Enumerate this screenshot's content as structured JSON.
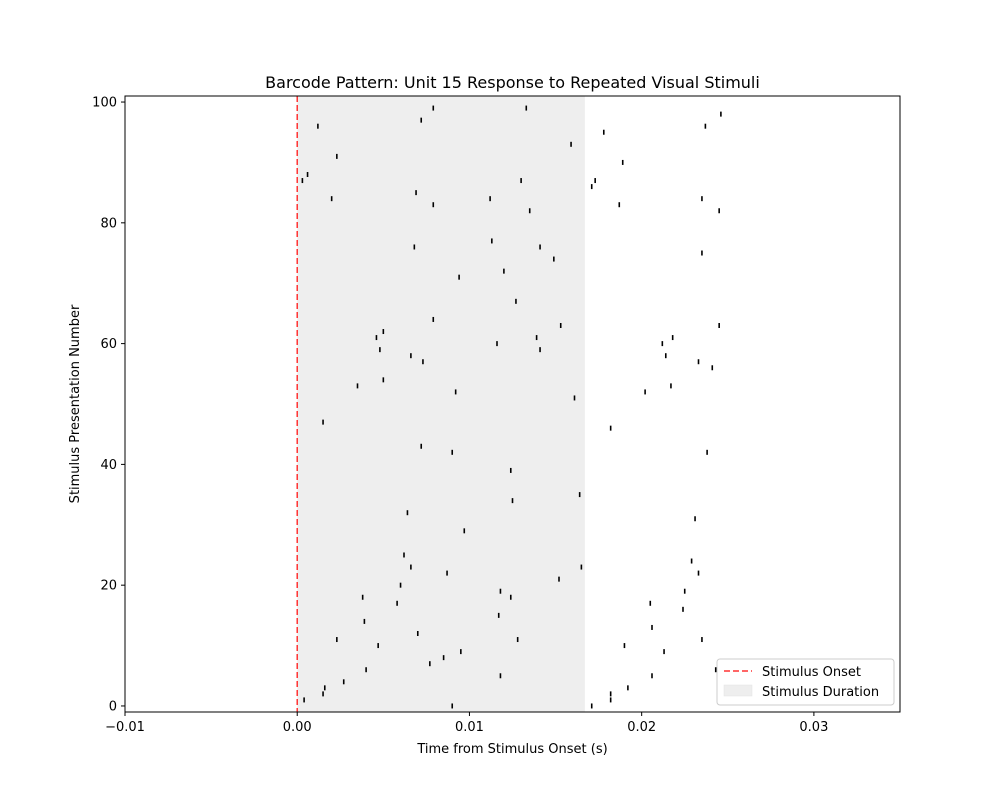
{
  "chart_data": {
    "type": "scatter",
    "marker": "vertical-tick",
    "title": "Barcode Pattern: Unit 15 Response to Repeated Visual Stimuli",
    "xlabel": "Time from Stimulus Onset (s)",
    "ylabel": "Stimulus Presentation Number",
    "xlim": [
      -0.01,
      0.035
    ],
    "ylim": [
      -1,
      101
    ],
    "xticks": [
      -0.01,
      0.0,
      0.01,
      0.02,
      0.03
    ],
    "xtick_labels": [
      "−0.01",
      "0.00",
      "0.01",
      "0.02",
      "0.03"
    ],
    "yticks": [
      0,
      20,
      40,
      60,
      80,
      100
    ],
    "ytick_labels": [
      "0",
      "20",
      "40",
      "60",
      "80",
      "100"
    ],
    "grid": false,
    "legend_position": "lower-right",
    "colors": {
      "spike": "#000000",
      "onset_line": "#ff3333",
      "stimulus_span": "#eeeeee",
      "axes": "#000000"
    },
    "stimulus_onset": {
      "x": 0.0,
      "label": "Stimulus Onset"
    },
    "stimulus_duration": {
      "x_start": 0.0,
      "x_end": 0.0167,
      "label": "Stimulus Duration"
    },
    "spikes": [
      {
        "x": 0.009,
        "y": 0
      },
      {
        "x": 0.0171,
        "y": 0
      },
      {
        "x": 0.0004,
        "y": 1
      },
      {
        "x": 0.0182,
        "y": 1
      },
      {
        "x": 0.0015,
        "y": 2
      },
      {
        "x": 0.0182,
        "y": 2
      },
      {
        "x": 0.0016,
        "y": 3
      },
      {
        "x": 0.0192,
        "y": 3
      },
      {
        "x": 0.0027,
        "y": 4
      },
      {
        "x": 0.0118,
        "y": 5
      },
      {
        "x": 0.0206,
        "y": 5
      },
      {
        "x": 0.004,
        "y": 6
      },
      {
        "x": 0.0243,
        "y": 6
      },
      {
        "x": 0.0077,
        "y": 7
      },
      {
        "x": 0.0085,
        "y": 8
      },
      {
        "x": 0.0095,
        "y": 9
      },
      {
        "x": 0.0213,
        "y": 9
      },
      {
        "x": 0.0047,
        "y": 10
      },
      {
        "x": 0.019,
        "y": 10
      },
      {
        "x": 0.0023,
        "y": 11
      },
      {
        "x": 0.0128,
        "y": 11
      },
      {
        "x": 0.0235,
        "y": 11
      },
      {
        "x": 0.007,
        "y": 12
      },
      {
        "x": 0.0206,
        "y": 13
      },
      {
        "x": 0.0039,
        "y": 14
      },
      {
        "x": 0.0117,
        "y": 15
      },
      {
        "x": 0.0224,
        "y": 16
      },
      {
        "x": 0.0058,
        "y": 17
      },
      {
        "x": 0.0205,
        "y": 17
      },
      {
        "x": 0.0038,
        "y": 18
      },
      {
        "x": 0.0124,
        "y": 18
      },
      {
        "x": 0.0118,
        "y": 19
      },
      {
        "x": 0.0225,
        "y": 19
      },
      {
        "x": 0.006,
        "y": 20
      },
      {
        "x": 0.0152,
        "y": 21
      },
      {
        "x": 0.0087,
        "y": 22
      },
      {
        "x": 0.0233,
        "y": 22
      },
      {
        "x": 0.0066,
        "y": 23
      },
      {
        "x": 0.0165,
        "y": 23
      },
      {
        "x": 0.0229,
        "y": 24
      },
      {
        "x": 0.0062,
        "y": 25
      },
      {
        "x": 0.0097,
        "y": 29
      },
      {
        "x": 0.0231,
        "y": 31
      },
      {
        "x": 0.0064,
        "y": 32
      },
      {
        "x": 0.0125,
        "y": 34
      },
      {
        "x": 0.0164,
        "y": 35
      },
      {
        "x": 0.0124,
        "y": 39
      },
      {
        "x": 0.009,
        "y": 42
      },
      {
        "x": 0.0238,
        "y": 42
      },
      {
        "x": 0.0072,
        "y": 43
      },
      {
        "x": 0.0182,
        "y": 46
      },
      {
        "x": 0.0015,
        "y": 47
      },
      {
        "x": 0.0161,
        "y": 51
      },
      {
        "x": 0.0092,
        "y": 52
      },
      {
        "x": 0.0202,
        "y": 52
      },
      {
        "x": 0.0035,
        "y": 53
      },
      {
        "x": 0.0217,
        "y": 53
      },
      {
        "x": 0.005,
        "y": 54
      },
      {
        "x": 0.0241,
        "y": 56
      },
      {
        "x": 0.0073,
        "y": 57
      },
      {
        "x": 0.0233,
        "y": 57
      },
      {
        "x": 0.0066,
        "y": 58
      },
      {
        "x": 0.0214,
        "y": 58
      },
      {
        "x": 0.0048,
        "y": 59
      },
      {
        "x": 0.0141,
        "y": 59
      },
      {
        "x": 0.0116,
        "y": 60
      },
      {
        "x": 0.0212,
        "y": 60
      },
      {
        "x": 0.0046,
        "y": 61
      },
      {
        "x": 0.0139,
        "y": 61
      },
      {
        "x": 0.0218,
        "y": 61
      },
      {
        "x": 0.005,
        "y": 62
      },
      {
        "x": 0.0153,
        "y": 63
      },
      {
        "x": 0.0245,
        "y": 63
      },
      {
        "x": 0.0079,
        "y": 64
      },
      {
        "x": 0.0127,
        "y": 67
      },
      {
        "x": 0.0094,
        "y": 71
      },
      {
        "x": 0.012,
        "y": 72
      },
      {
        "x": 0.0149,
        "y": 74
      },
      {
        "x": 0.0235,
        "y": 75
      },
      {
        "x": 0.0141,
        "y": 76
      },
      {
        "x": 0.0068,
        "y": 76
      },
      {
        "x": 0.0113,
        "y": 77
      },
      {
        "x": 0.0135,
        "y": 82
      },
      {
        "x": 0.0245,
        "y": 82
      },
      {
        "x": 0.0079,
        "y": 83
      },
      {
        "x": 0.0187,
        "y": 83
      },
      {
        "x": 0.002,
        "y": 84
      },
      {
        "x": 0.0112,
        "y": 84
      },
      {
        "x": 0.0235,
        "y": 84
      },
      {
        "x": 0.0069,
        "y": 85
      },
      {
        "x": 0.0171,
        "y": 86
      },
      {
        "x": 0.0003,
        "y": 87
      },
      {
        "x": 0.013,
        "y": 87
      },
      {
        "x": 0.0173,
        "y": 87
      },
      {
        "x": 0.0006,
        "y": 88
      },
      {
        "x": 0.0189,
        "y": 90
      },
      {
        "x": 0.0023,
        "y": 91
      },
      {
        "x": 0.0159,
        "y": 93
      },
      {
        "x": 0.0178,
        "y": 95
      },
      {
        "x": 0.0012,
        "y": 96
      },
      {
        "x": 0.0237,
        "y": 96
      },
      {
        "x": 0.0072,
        "y": 97
      },
      {
        "x": 0.0246,
        "y": 98
      },
      {
        "x": 0.0079,
        "y": 99
      },
      {
        "x": 0.0133,
        "y": 99
      }
    ]
  }
}
